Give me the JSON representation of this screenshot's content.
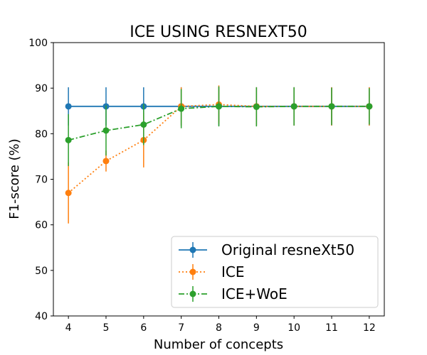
{
  "chart_data": {
    "type": "line",
    "title": "ICE USING RESNEXT50",
    "xlabel": "Number of concepts",
    "ylabel": "F1-score (%)",
    "x": [
      4,
      5,
      6,
      7,
      8,
      9,
      10,
      11,
      12
    ],
    "xlim": [
      3.6,
      12.4
    ],
    "ylim": [
      40,
      100
    ],
    "yticks": [
      40,
      50,
      60,
      70,
      80,
      90,
      100
    ],
    "grid": false,
    "legend_position": "lower-right",
    "series": [
      {
        "name": "Original resneXt50",
        "color": "#1f77b4",
        "linestyle": "solid",
        "values": [
          86,
          86,
          86,
          86,
          86,
          86,
          86,
          86,
          86
        ],
        "err": [
          4.2,
          4.2,
          4.2,
          4.2,
          4.2,
          4.2,
          4.2,
          4.2,
          4.2
        ]
      },
      {
        "name": "ICE",
        "color": "#ff7f0e",
        "linestyle": "dotted",
        "values": [
          67,
          74,
          78.6,
          86,
          86.4,
          86,
          86,
          86,
          86
        ],
        "err": [
          6.7,
          2.3,
          6.0,
          4.2,
          4.2,
          4.2,
          4.2,
          4.2,
          4.2
        ]
      },
      {
        "name": "ICE+WoE",
        "color": "#2ca02c",
        "linestyle": "dashdot",
        "values": [
          78.6,
          80.7,
          82,
          85.5,
          86,
          85.9,
          86,
          86,
          86
        ],
        "err": [
          5.7,
          5.5,
          4.5,
          4.3,
          4.4,
          4.3,
          4.2,
          4.1,
          4.0
        ]
      }
    ]
  }
}
